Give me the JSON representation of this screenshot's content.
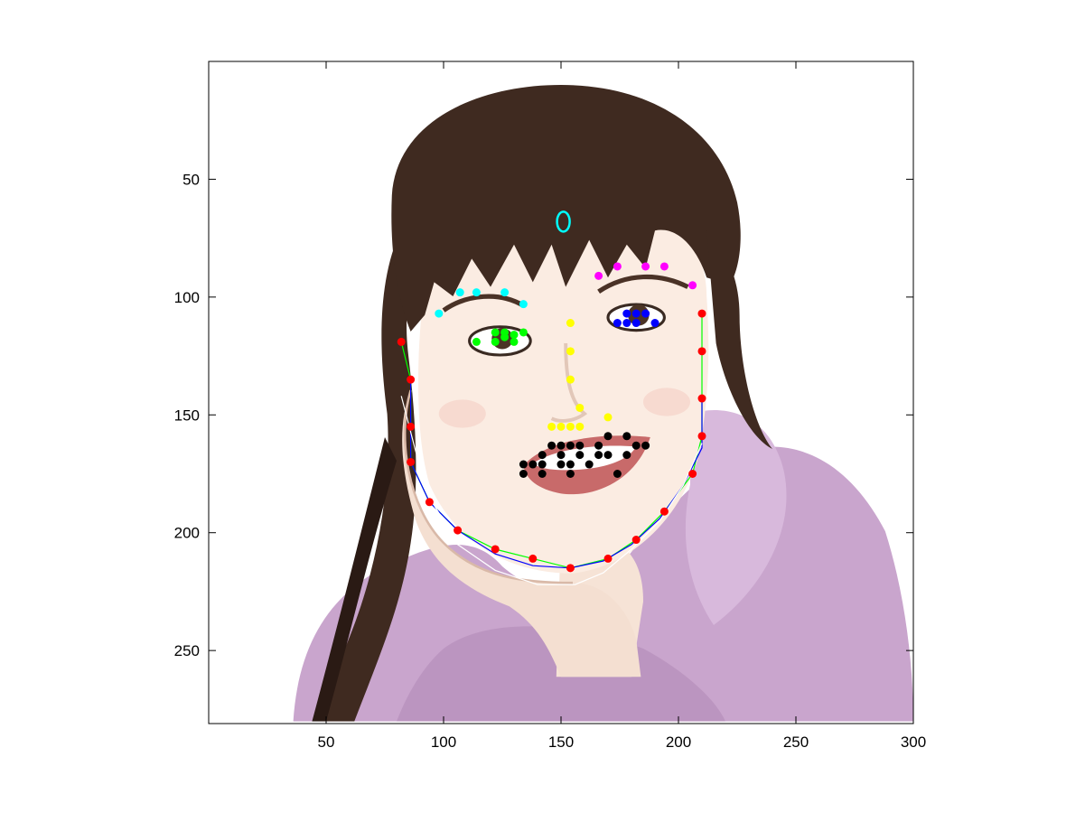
{
  "figure": {
    "background": "#ffffff",
    "axes_color": "#000000"
  },
  "chart_data": {
    "type": "scatter",
    "title": "",
    "xlabel": "",
    "ylabel": "",
    "xlim": [
      0,
      300
    ],
    "ylim": [
      281,
      0
    ],
    "y_reversed": true,
    "grid": false,
    "background_image": "cartoon portrait of a smiling woman with long dark hair and a lilac top, chin resting on her hand",
    "xticks": [
      50,
      100,
      150,
      200,
      250,
      300
    ],
    "xtick_labels": [
      "50",
      "100",
      "150",
      "200",
      "250",
      "300"
    ],
    "yticks": [
      50,
      100,
      150,
      200,
      250
    ],
    "ytick_labels": [
      "50",
      "100",
      "150",
      "200",
      "250"
    ],
    "series": [
      {
        "color": "#00ffff",
        "marker": "dot",
        "points": [
          [
            98,
            107
          ],
          [
            107,
            98
          ],
          [
            114,
            98
          ],
          [
            126,
            98
          ],
          [
            134,
            103
          ]
        ]
      },
      {
        "color": "#ff00ff",
        "marker": "dot",
        "points": [
          [
            166,
            91
          ],
          [
            174,
            87
          ],
          [
            186,
            87
          ],
          [
            194,
            87
          ],
          [
            206,
            95
          ]
        ]
      },
      {
        "color": "#00ff00",
        "marker": "dot",
        "points": [
          [
            114,
            119
          ],
          [
            122,
            115
          ],
          [
            122,
            119
          ],
          [
            126,
            115
          ],
          [
            130,
            119
          ],
          [
            134,
            115
          ],
          [
            126,
            117
          ],
          [
            130,
            116
          ]
        ]
      },
      {
        "color": "#0000ff",
        "marker": "dot",
        "points": [
          [
            174,
            111
          ],
          [
            178,
            107
          ],
          [
            178,
            111
          ],
          [
            182,
            111
          ],
          [
            186,
            107
          ],
          [
            190,
            111
          ],
          [
            182,
            107
          ]
        ]
      },
      {
        "color": "#ffff00",
        "marker": "dot",
        "points": [
          [
            154,
            111
          ],
          [
            154,
            123
          ],
          [
            154,
            135
          ],
          [
            158,
            147
          ],
          [
            146,
            155
          ],
          [
            150,
            155
          ],
          [
            154,
            155
          ],
          [
            158,
            155
          ],
          [
            170,
            151
          ]
        ]
      },
      {
        "color": "#000000",
        "marker": "dot",
        "points": [
          [
            134,
            171
          ],
          [
            134,
            175
          ],
          [
            138,
            171
          ],
          [
            142,
            167
          ],
          [
            142,
            171
          ],
          [
            142,
            175
          ],
          [
            146,
            163
          ],
          [
            150,
            163
          ],
          [
            150,
            167
          ],
          [
            154,
            171
          ],
          [
            154,
            163
          ],
          [
            158,
            163
          ],
          [
            158,
            167
          ],
          [
            162,
            171
          ],
          [
            166,
            163
          ],
          [
            166,
            167
          ],
          [
            170,
            159
          ],
          [
            170,
            167
          ],
          [
            174,
            175
          ],
          [
            178,
            159
          ],
          [
            178,
            167
          ],
          [
            182,
            163
          ],
          [
            186,
            163
          ],
          [
            150,
            171
          ],
          [
            154,
            175
          ]
        ]
      },
      {
        "color": "#ff0000",
        "marker": "dot",
        "points": [
          [
            82,
            119
          ],
          [
            86,
            135
          ],
          [
            86,
            155
          ],
          [
            86,
            170
          ],
          [
            94,
            187
          ],
          [
            106,
            199
          ],
          [
            122,
            207
          ],
          [
            138,
            211
          ],
          [
            154,
            215
          ],
          [
            170,
            211
          ],
          [
            182,
            203
          ],
          [
            194,
            191
          ],
          [
            206,
            175
          ],
          [
            210,
            159
          ],
          [
            210,
            143
          ],
          [
            210,
            123
          ],
          [
            210,
            107
          ]
        ]
      },
      {
        "color": "#00ffff",
        "marker": "ellipse",
        "points": [
          [
            151,
            68
          ]
        ]
      }
    ],
    "lines": [
      {
        "color": "#00ff00",
        "points": [
          [
            82,
            119
          ],
          [
            86,
            135
          ],
          [
            86,
            155
          ],
          [
            86,
            170
          ],
          [
            94,
            187
          ],
          [
            106,
            199
          ],
          [
            122,
            207
          ],
          [
            138,
            211
          ],
          [
            154,
            215
          ],
          [
            170,
            211
          ],
          [
            182,
            203
          ],
          [
            194,
            191
          ],
          [
            206,
            175
          ],
          [
            210,
            159
          ],
          [
            210,
            143
          ],
          [
            210,
            123
          ],
          [
            210,
            107
          ]
        ]
      },
      {
        "color": "#0000ff",
        "points": [
          [
            86,
            135
          ],
          [
            86,
            170
          ],
          [
            94,
            187
          ],
          [
            106,
            199
          ],
          [
            122,
            209
          ],
          [
            138,
            214
          ],
          [
            154,
            215
          ],
          [
            168,
            212
          ],
          [
            180,
            205
          ],
          [
            192,
            194
          ],
          [
            202,
            180
          ],
          [
            210,
            164
          ],
          [
            210,
            143
          ]
        ]
      },
      {
        "color": "#ffffff",
        "points": [
          [
            82,
            142
          ],
          [
            88,
            165
          ],
          [
            94,
            185
          ],
          [
            106,
            205
          ],
          [
            122,
            216
          ],
          [
            140,
            222
          ],
          [
            156,
            222
          ],
          [
            168,
            217
          ],
          [
            180,
            207
          ],
          [
            192,
            195
          ],
          [
            202,
            180
          ],
          [
            210,
            162
          ]
        ]
      }
    ]
  }
}
